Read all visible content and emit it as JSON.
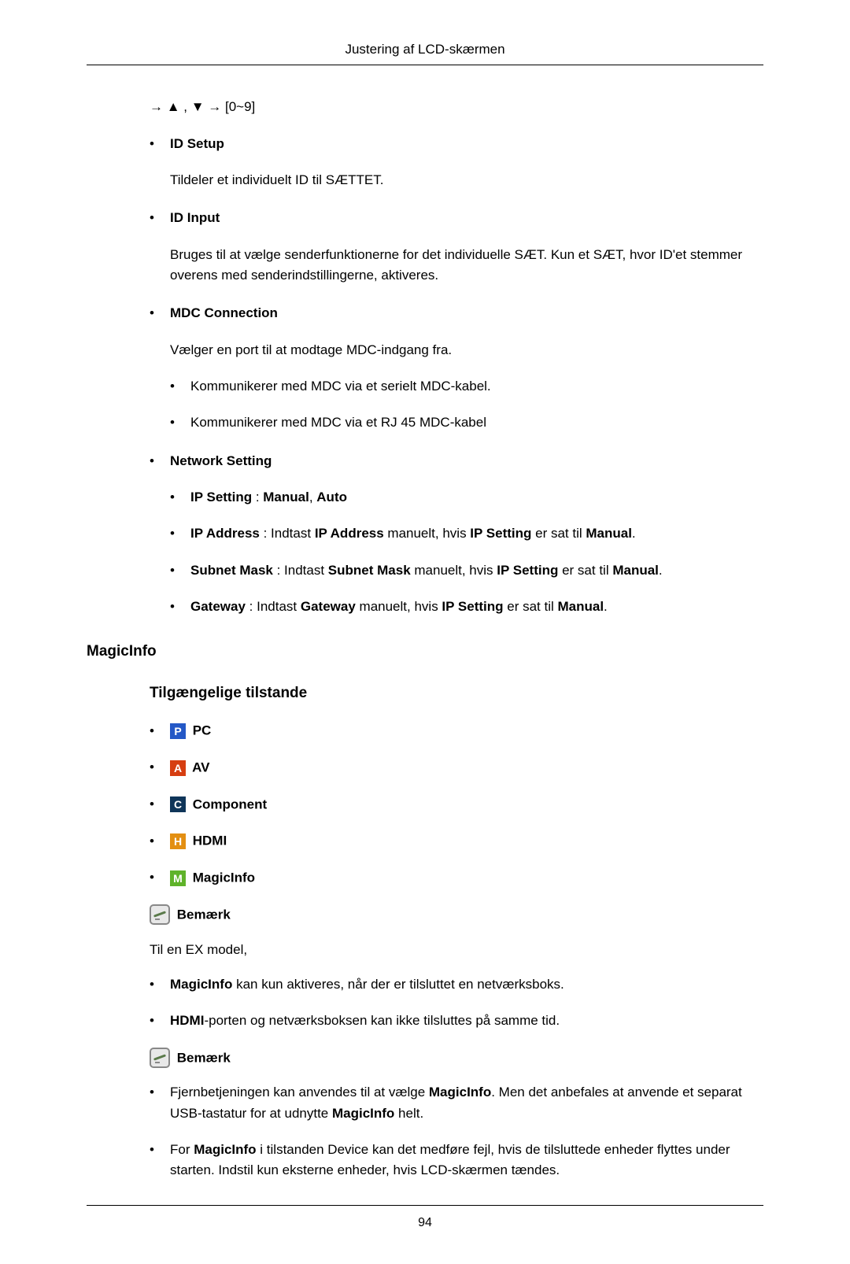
{
  "header": "Justering af LCD-skærmen",
  "arrowline": "→ ▲ , ▼ → [0~9]",
  "items": [
    {
      "label": "ID Setup",
      "desc": "Tildeler et individuelt ID til SÆTTET."
    },
    {
      "label": "ID Input",
      "desc": "Bruges til at vælge senderfunktionerne for det individuelle SÆT. Kun et SÆT, hvor ID'et stemmer overens med senderindstillingerne, aktiveres."
    },
    {
      "label": "MDC Connection",
      "desc": "Vælger en port til at modtage MDC-indgang fra.",
      "sub": [
        "Kommunikerer med MDC via et serielt MDC-kabel.",
        "Kommunikerer med MDC via et RJ 45 MDC-kabel"
      ]
    },
    {
      "label": "Network Setting",
      "net": [
        {
          "pre": "IP Setting",
          "mid": " : ",
          "b2": "Manual",
          "mid2": ", ",
          "b3": "Auto"
        },
        {
          "pre": "IP Address",
          "mid": " : Indtast ",
          "b2": "IP Address",
          "mid2": " manuelt, hvis ",
          "b3": "IP Setting",
          "mid3": " er sat til ",
          "b4": "Manual",
          "tail": "."
        },
        {
          "pre": "Subnet Mask",
          "mid": " : Indtast ",
          "b2": "Subnet Mask",
          "mid2": " manuelt, hvis ",
          "b3": "IP Setting",
          "mid3": " er sat til ",
          "b4": "Manual",
          "tail": "."
        },
        {
          "pre": "Gateway",
          "mid": " : Indtast ",
          "b2": "Gateway",
          "mid2": " manuelt, hvis ",
          "b3": "IP Setting",
          "mid3": " er sat til ",
          "b4": "Manual",
          "tail": "."
        }
      ]
    }
  ],
  "magicinfo_heading": "MagicInfo",
  "modes_heading": "Tilgængelige tilstande",
  "modes": [
    {
      "letter": "P",
      "color": "#2458c6",
      "name": "PC"
    },
    {
      "letter": "A",
      "color": "#d63e11",
      "name": "AV"
    },
    {
      "letter": "C",
      "color": "#0f3559",
      "name": "Component"
    },
    {
      "letter": "H",
      "color": "#e38f12",
      "name": "HDMI"
    },
    {
      "letter": "M",
      "color": "#5fb32a",
      "name": "MagicInfo"
    }
  ],
  "note_label": "Bemærk",
  "ex_intro": "Til en EX model,",
  "ex_notes": [
    {
      "b1": "MagicInfo",
      "t1": " kan kun aktiveres, når der er tilsluttet en netværksboks."
    },
    {
      "b1": "HDMI",
      "t1": "-porten og netværksboksen kan ikke tilsluttes på samme tid."
    }
  ],
  "notes2": [
    {
      "t0": "Fjernbetjeningen kan anvendes til at vælge ",
      "b1": "MagicInfo",
      "t1": ". Men det anbefales at anvende et separat USB-tastatur for at udnytte ",
      "b2": "MagicInfo",
      "t2": " helt."
    },
    {
      "t0": "For  ",
      "b1": "MagicInfo",
      "t1": " i tilstanden Device kan det medføre fejl, hvis de tilsluttede enheder flyttes under starten. Indstil kun eksterne enheder, hvis LCD-skærmen tændes."
    }
  ],
  "page_number": "94"
}
